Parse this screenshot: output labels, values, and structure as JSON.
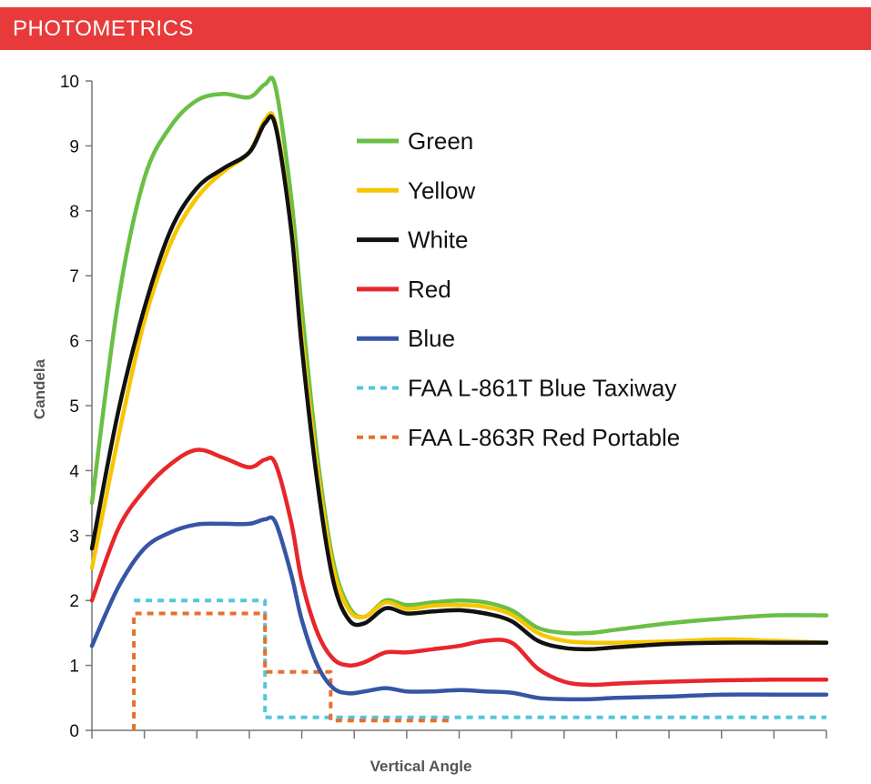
{
  "header": {
    "title": "PHOTOMETRICS"
  },
  "chart_data": {
    "type": "line",
    "xlabel": "Vertical Angle",
    "ylabel": "Candela",
    "ylim": [
      0,
      10
    ],
    "yticks": [
      "0",
      "1",
      "2",
      "3",
      "4",
      "5",
      "6",
      "7",
      "8",
      "9",
      "10"
    ],
    "xlim": [
      0,
      14
    ],
    "x_tick_count": 15,
    "grid": false,
    "legend_position": "right, inside plot",
    "series": [
      {
        "name": "Green",
        "color": "#6abf45",
        "style": "solid",
        "points": [
          [
            0,
            3.5
          ],
          [
            0.5,
            6.6
          ],
          [
            1,
            8.5
          ],
          [
            1.5,
            9.3
          ],
          [
            2,
            9.7
          ],
          [
            2.5,
            9.8
          ],
          [
            3,
            9.75
          ],
          [
            3.3,
            9.95
          ],
          [
            3.5,
            9.9
          ],
          [
            3.8,
            8.2
          ],
          [
            4,
            6.5
          ],
          [
            4.3,
            4.2
          ],
          [
            4.6,
            2.6
          ],
          [
            4.9,
            1.9
          ],
          [
            5.2,
            1.75
          ],
          [
            5.6,
            2.0
          ],
          [
            6,
            1.93
          ],
          [
            6.5,
            1.97
          ],
          [
            7,
            2.0
          ],
          [
            7.5,
            1.97
          ],
          [
            8,
            1.85
          ],
          [
            8.5,
            1.58
          ],
          [
            9,
            1.5
          ],
          [
            9.5,
            1.5
          ],
          [
            10,
            1.55
          ],
          [
            11,
            1.65
          ],
          [
            12,
            1.72
          ],
          [
            13,
            1.77
          ],
          [
            14,
            1.77
          ]
        ]
      },
      {
        "name": "Yellow",
        "color": "#f7c600",
        "style": "solid",
        "points": [
          [
            0,
            2.5
          ],
          [
            0.5,
            4.5
          ],
          [
            1,
            6.3
          ],
          [
            1.5,
            7.5
          ],
          [
            2,
            8.2
          ],
          [
            2.5,
            8.6
          ],
          [
            3,
            8.9
          ],
          [
            3.3,
            9.4
          ],
          [
            3.5,
            9.35
          ],
          [
            3.8,
            7.8
          ],
          [
            4,
            6.1
          ],
          [
            4.3,
            4.0
          ],
          [
            4.6,
            2.5
          ],
          [
            4.9,
            1.85
          ],
          [
            5.2,
            1.75
          ],
          [
            5.6,
            1.97
          ],
          [
            6,
            1.87
          ],
          [
            6.5,
            1.92
          ],
          [
            7,
            1.93
          ],
          [
            7.5,
            1.9
          ],
          [
            8,
            1.78
          ],
          [
            8.5,
            1.5
          ],
          [
            9,
            1.38
          ],
          [
            9.5,
            1.35
          ],
          [
            10,
            1.35
          ],
          [
            11,
            1.37
          ],
          [
            12,
            1.4
          ],
          [
            13,
            1.38
          ],
          [
            14,
            1.35
          ]
        ]
      },
      {
        "name": "White",
        "color": "#111111",
        "style": "solid",
        "points": [
          [
            0,
            2.8
          ],
          [
            0.5,
            4.9
          ],
          [
            1,
            6.5
          ],
          [
            1.5,
            7.7
          ],
          [
            2,
            8.35
          ],
          [
            2.5,
            8.65
          ],
          [
            3,
            8.9
          ],
          [
            3.3,
            9.35
          ],
          [
            3.5,
            9.3
          ],
          [
            3.8,
            7.7
          ],
          [
            4,
            5.9
          ],
          [
            4.3,
            3.8
          ],
          [
            4.6,
            2.3
          ],
          [
            4.9,
            1.7
          ],
          [
            5.2,
            1.65
          ],
          [
            5.6,
            1.88
          ],
          [
            6,
            1.8
          ],
          [
            6.5,
            1.83
          ],
          [
            7,
            1.85
          ],
          [
            7.5,
            1.8
          ],
          [
            8,
            1.68
          ],
          [
            8.5,
            1.38
          ],
          [
            9,
            1.27
          ],
          [
            9.5,
            1.25
          ],
          [
            10,
            1.28
          ],
          [
            11,
            1.33
          ],
          [
            12,
            1.35
          ],
          [
            13,
            1.35
          ],
          [
            14,
            1.35
          ]
        ]
      },
      {
        "name": "Red",
        "color": "#e8262b",
        "style": "solid",
        "points": [
          [
            0,
            2.0
          ],
          [
            0.5,
            3.1
          ],
          [
            1,
            3.7
          ],
          [
            1.5,
            4.1
          ],
          [
            2,
            4.32
          ],
          [
            2.5,
            4.2
          ],
          [
            3,
            4.05
          ],
          [
            3.3,
            4.17
          ],
          [
            3.5,
            4.1
          ],
          [
            3.8,
            3.2
          ],
          [
            4,
            2.3
          ],
          [
            4.3,
            1.5
          ],
          [
            4.6,
            1.1
          ],
          [
            4.9,
            1.0
          ],
          [
            5.2,
            1.05
          ],
          [
            5.6,
            1.2
          ],
          [
            6,
            1.2
          ],
          [
            6.5,
            1.25
          ],
          [
            7,
            1.3
          ],
          [
            7.5,
            1.38
          ],
          [
            8,
            1.35
          ],
          [
            8.5,
            0.95
          ],
          [
            9,
            0.75
          ],
          [
            9.5,
            0.7
          ],
          [
            10,
            0.72
          ],
          [
            11,
            0.75
          ],
          [
            12,
            0.77
          ],
          [
            13,
            0.78
          ],
          [
            14,
            0.78
          ]
        ]
      },
      {
        "name": "Blue",
        "color": "#3555a5",
        "style": "solid",
        "points": [
          [
            0,
            1.3
          ],
          [
            0.5,
            2.2
          ],
          [
            1,
            2.8
          ],
          [
            1.5,
            3.05
          ],
          [
            2,
            3.17
          ],
          [
            2.5,
            3.18
          ],
          [
            3,
            3.18
          ],
          [
            3.3,
            3.25
          ],
          [
            3.5,
            3.2
          ],
          [
            3.8,
            2.4
          ],
          [
            4,
            1.7
          ],
          [
            4.3,
            1.0
          ],
          [
            4.6,
            0.65
          ],
          [
            4.9,
            0.57
          ],
          [
            5.2,
            0.6
          ],
          [
            5.6,
            0.65
          ],
          [
            6,
            0.6
          ],
          [
            6.5,
            0.6
          ],
          [
            7,
            0.62
          ],
          [
            7.5,
            0.6
          ],
          [
            8,
            0.58
          ],
          [
            8.5,
            0.5
          ],
          [
            9,
            0.48
          ],
          [
            9.5,
            0.48
          ],
          [
            10,
            0.5
          ],
          [
            11,
            0.52
          ],
          [
            12,
            0.55
          ],
          [
            13,
            0.55
          ],
          [
            14,
            0.55
          ]
        ]
      },
      {
        "name": "FAA L-861T Blue Taxiway",
        "color": "#52c6dc",
        "style": "dotted",
        "points": [
          [
            0.8,
            2.0
          ],
          [
            3.3,
            2.0
          ],
          [
            3.3,
            0.2
          ],
          [
            14,
            0.2
          ]
        ]
      },
      {
        "name": "FAA L-863R Red Portable",
        "color": "#e86f2e",
        "style": "dotted",
        "points": [
          [
            0.8,
            0
          ],
          [
            0.8,
            1.8
          ],
          [
            3.3,
            1.8
          ],
          [
            3.3,
            0.9
          ],
          [
            4.55,
            0.9
          ],
          [
            4.55,
            0.15
          ],
          [
            6.8,
            0.15
          ],
          [
            6.8,
            0.1
          ]
        ]
      }
    ]
  }
}
